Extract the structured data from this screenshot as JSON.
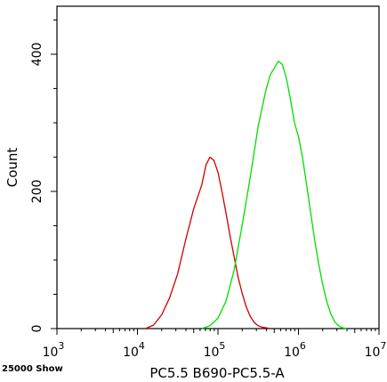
{
  "chart_data": {
    "type": "line",
    "title": "",
    "xlabel": "PC5.5 B690-PC5.5-A",
    "ylabel": "Count",
    "x_scale": "log",
    "xlim": [
      1000,
      10000000
    ],
    "ylim": [
      0,
      470
    ],
    "x_tick_labels": [
      {
        "base": "10",
        "exp": "3"
      },
      {
        "base": "10",
        "exp": "4"
      },
      {
        "base": "10",
        "exp": "5"
      },
      {
        "base": "10",
        "exp": "6"
      },
      {
        "base": "10",
        "exp": "7"
      }
    ],
    "x_tick_values": [
      1000,
      10000,
      100000,
      1000000,
      10000000
    ],
    "y_tick_labels": [
      "0",
      "200",
      "400"
    ],
    "y_tick_values": [
      0,
      200,
      400
    ],
    "footer_note": "25000 Show",
    "grid": false,
    "series": [
      {
        "color": "#cc0000",
        "x": [
          12600,
          15800,
          20000,
          25100,
          31600,
          39800,
          50100,
          63100,
          70800,
          79400,
          89100,
          100000,
          112200,
          125900,
          141300,
          158500,
          177800,
          199500,
          223900,
          251200,
          281800,
          316200,
          354800,
          398100,
          446700
        ],
        "y": [
          0,
          5,
          20,
          45,
          80,
          130,
          175,
          210,
          238,
          250,
          245,
          228,
          200,
          168,
          135,
          105,
          75,
          52,
          32,
          18,
          9,
          4,
          2,
          1,
          0
        ]
      },
      {
        "color": "#00dd00",
        "x": [
          63100,
          79400,
          100000,
          125900,
          158500,
          199500,
          251200,
          316200,
          398100,
          446700,
          501200,
          562300,
          631000,
          708000,
          794300,
          891300,
          1000000,
          1122000,
          1259000,
          1413000,
          1585000,
          1778000,
          1995000,
          2239000,
          2512000,
          2818000,
          3162000,
          3548000,
          3981000
        ],
        "y": [
          0,
          4,
          15,
          40,
          85,
          150,
          220,
          295,
          350,
          370,
          380,
          390,
          385,
          365,
          335,
          300,
          280,
          250,
          210,
          170,
          130,
          95,
          65,
          40,
          22,
          10,
          4,
          1,
          0
        ]
      }
    ]
  }
}
